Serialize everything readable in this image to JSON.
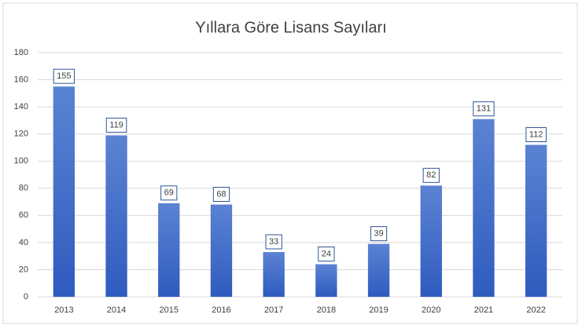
{
  "chart_data": {
    "type": "bar",
    "title": "Yıllara Göre Lisans Sayıları",
    "categories": [
      "2013",
      "2014",
      "2015",
      "2016",
      "2017",
      "2018",
      "2019",
      "2020",
      "2021",
      "2022"
    ],
    "values": [
      155,
      119,
      69,
      68,
      33,
      24,
      39,
      82,
      131,
      112
    ],
    "color": "#3a66c4",
    "ylim": [
      0,
      180
    ],
    "yticks": [
      0,
      20,
      40,
      60,
      80,
      100,
      120,
      140,
      160,
      180
    ],
    "grid": true
  }
}
